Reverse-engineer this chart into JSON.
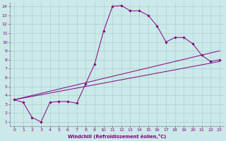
{
  "xlabel": "Windchill (Refroidissement éolien,°C)",
  "bg_color": "#cce9e9",
  "line_color": "#800080",
  "xlim": [
    -0.5,
    23.5
  ],
  "ylim": [
    0.5,
    14.5
  ],
  "xticks": [
    0,
    1,
    2,
    3,
    4,
    5,
    6,
    7,
    8,
    9,
    10,
    11,
    12,
    13,
    14,
    15,
    16,
    17,
    18,
    19,
    20,
    21,
    22,
    23
  ],
  "yticks": [
    1,
    2,
    3,
    4,
    5,
    6,
    7,
    8,
    9,
    10,
    11,
    12,
    13,
    14
  ],
  "curve1_x": [
    0,
    1,
    2,
    3,
    4,
    5,
    6,
    7,
    8,
    9,
    10,
    11,
    12,
    13,
    14,
    15,
    16,
    17,
    18,
    19,
    20,
    21,
    22,
    23
  ],
  "curve1_y": [
    3.5,
    3.2,
    1.5,
    1.0,
    3.2,
    3.3,
    3.3,
    3.1,
    5.3,
    7.5,
    11.2,
    14.0,
    14.1,
    13.5,
    13.5,
    13.0,
    11.8,
    10.0,
    10.5,
    10.5,
    9.8,
    8.5,
    7.8,
    8.0
  ],
  "line1_x": [
    0,
    23
  ],
  "line1_y": [
    3.5,
    9.0
  ],
  "line2_x": [
    0,
    23
  ],
  "line2_y": [
    3.5,
    7.8
  ]
}
